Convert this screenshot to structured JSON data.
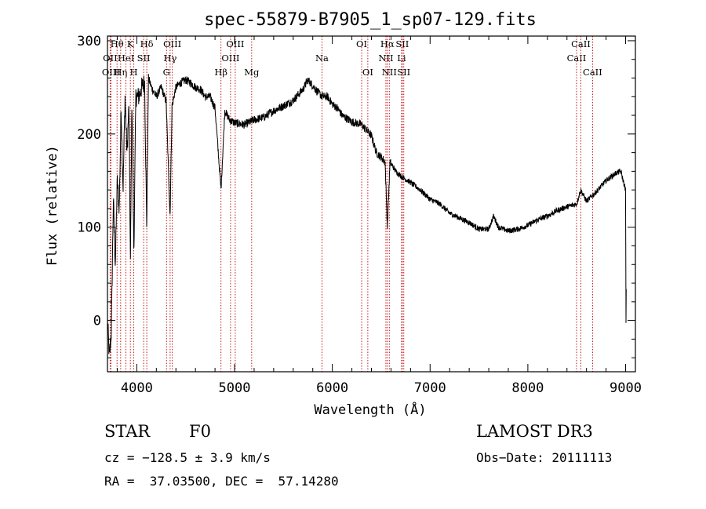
{
  "chart_data": {
    "type": "line",
    "title": "spec-55879-B7905_1_sp07-129.fits",
    "xlabel": "Wavelength (Å)",
    "ylabel": "Flux (relative)",
    "xlim": [
      3700,
      9100
    ],
    "ylim": [
      -55,
      305
    ],
    "xticks": [
      4000,
      5000,
      6000,
      7000,
      8000,
      9000
    ],
    "yticks": [
      0,
      100,
      200,
      300
    ],
    "spectrum_knots": [
      [
        3700,
        0
      ],
      [
        3720,
        -40
      ],
      [
        3740,
        -10
      ],
      [
        3760,
        130
      ],
      [
        3780,
        60
      ],
      [
        3800,
        150
      ],
      [
        3820,
        120
      ],
      [
        3840,
        230
      ],
      [
        3860,
        140
      ],
      [
        3880,
        240
      ],
      [
        3900,
        180
      ],
      [
        3920,
        230
      ],
      [
        3935,
        60
      ],
      [
        3950,
        240
      ],
      [
        3970,
        70
      ],
      [
        3990,
        240
      ],
      [
        4020,
        240
      ],
      [
        4050,
        250
      ],
      [
        4080,
        255
      ],
      [
        4101,
        100
      ],
      [
        4120,
        260
      ],
      [
        4150,
        250
      ],
      [
        4200,
        240
      ],
      [
        4250,
        250
      ],
      [
        4300,
        235
      ],
      [
        4340,
        110
      ],
      [
        4360,
        230
      ],
      [
        4400,
        250
      ],
      [
        4450,
        255
      ],
      [
        4500,
        258
      ],
      [
        4550,
        255
      ],
      [
        4600,
        250
      ],
      [
        4650,
        248
      ],
      [
        4700,
        240
      ],
      [
        4750,
        240
      ],
      [
        4800,
        228
      ],
      [
        4861,
        140
      ],
      [
        4900,
        225
      ],
      [
        4950,
        215
      ],
      [
        5000,
        212
      ],
      [
        5100,
        210
      ],
      [
        5200,
        215
      ],
      [
        5300,
        218
      ],
      [
        5400,
        225
      ],
      [
        5500,
        230
      ],
      [
        5600,
        236
      ],
      [
        5700,
        248
      ],
      [
        5750,
        258
      ],
      [
        5800,
        252
      ],
      [
        5850,
        245
      ],
      [
        5900,
        240
      ],
      [
        5950,
        240
      ],
      [
        6000,
        232
      ],
      [
        6050,
        228
      ],
      [
        6100,
        220
      ],
      [
        6200,
        213
      ],
      [
        6300,
        210
      ],
      [
        6400,
        198
      ],
      [
        6450,
        180
      ],
      [
        6500,
        175
      ],
      [
        6540,
        170
      ],
      [
        6563,
        100
      ],
      [
        6590,
        170
      ],
      [
        6650,
        160
      ],
      [
        6700,
        155
      ],
      [
        6800,
        148
      ],
      [
        6900,
        140
      ],
      [
        7000,
        130
      ],
      [
        7100,
        125
      ],
      [
        7200,
        115
      ],
      [
        7300,
        110
      ],
      [
        7400,
        105
      ],
      [
        7500,
        98
      ],
      [
        7600,
        98
      ],
      [
        7650,
        112
      ],
      [
        7700,
        100
      ],
      [
        7800,
        96
      ],
      [
        7900,
        98
      ],
      [
        8000,
        102
      ],
      [
        8100,
        108
      ],
      [
        8200,
        112
      ],
      [
        8300,
        118
      ],
      [
        8400,
        122
      ],
      [
        8500,
        125
      ],
      [
        8540,
        140
      ],
      [
        8600,
        128
      ],
      [
        8700,
        138
      ],
      [
        8800,
        150
      ],
      [
        8900,
        158
      ],
      [
        8950,
        160
      ],
      [
        9000,
        140
      ],
      [
        9004,
        -5
      ],
      [
        9008,
        60
      ]
    ],
    "annotations": [
      {
        "label": "OII",
        "wavelength": 3727,
        "row": 1
      },
      {
        "label": "OIII",
        "wavelength": 3735,
        "row": 2
      },
      {
        "label": "Hθ",
        "wavelength": 3798,
        "row": 0
      },
      {
        "label": "Hη",
        "wavelength": 3835,
        "row": 2
      },
      {
        "label": "HeI",
        "wavelength": 3889,
        "row": 1
      },
      {
        "label": "K",
        "wavelength": 3934,
        "row": 0
      },
      {
        "label": "H",
        "wavelength": 3969,
        "row": 2
      },
      {
        "label": "SII",
        "wavelength": 4070,
        "row": 1
      },
      {
        "label": "Hδ",
        "wavelength": 4102,
        "row": 0
      },
      {
        "label": "Hγ",
        "wavelength": 4341,
        "row": 1
      },
      {
        "label": "OIII",
        "wavelength": 4363,
        "row": 0
      },
      {
        "label": "G",
        "wavelength": 4304,
        "row": 2
      },
      {
        "label": "Hβ",
        "wavelength": 4861,
        "row": 2
      },
      {
        "label": "OIII",
        "wavelength": 4959,
        "row": 1
      },
      {
        "label": "OIII",
        "wavelength": 5007,
        "row": 0
      },
      {
        "label": "Mg",
        "wavelength": 5175,
        "row": 2
      },
      {
        "label": "Na",
        "wavelength": 5894,
        "row": 1
      },
      {
        "label": "OI",
        "wavelength": 6300,
        "row": 0
      },
      {
        "label": "OI",
        "wavelength": 6363,
        "row": 2
      },
      {
        "label": "NII",
        "wavelength": 6548,
        "row": 1
      },
      {
        "label": "Hα",
        "wavelength": 6563,
        "row": 0
      },
      {
        "label": "NII",
        "wavelength": 6583,
        "row": 2
      },
      {
        "label": "SII",
        "wavelength": 6716,
        "row": 0
      },
      {
        "label": "Li",
        "wavelength": 6708,
        "row": 1
      },
      {
        "label": "SII",
        "wavelength": 6731,
        "row": 2
      },
      {
        "label": "CaII",
        "wavelength": 8498,
        "row": 1
      },
      {
        "label": "CaII",
        "wavelength": 8542,
        "row": 0
      },
      {
        "label": "CaII",
        "wavelength": 8662,
        "row": 2
      }
    ]
  },
  "info": {
    "class": "STAR",
    "subclass": "F0",
    "survey": "LAMOST DR3",
    "cz": "cz = −128.5 ± 3.9 km/s",
    "obs_date": "Obs−Date: 20111113",
    "radec": "RA =  37.03500, DEC =  57.14280"
  }
}
